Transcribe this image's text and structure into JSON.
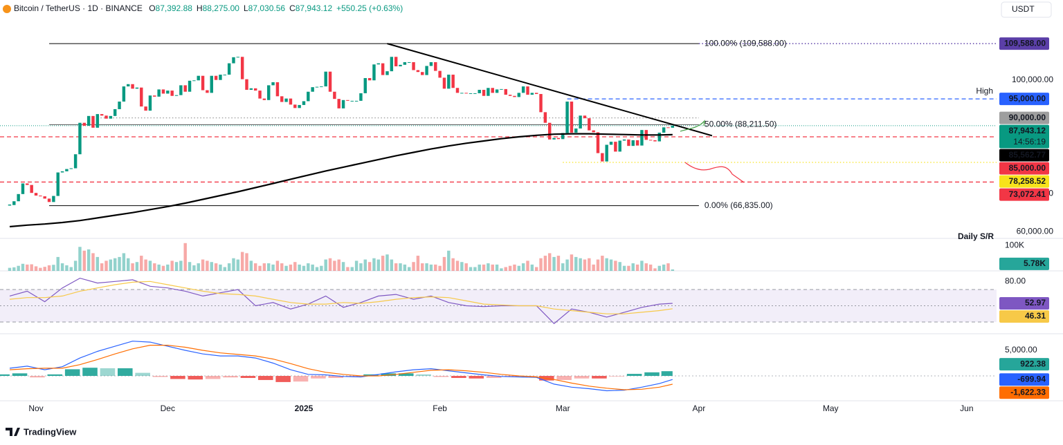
{
  "header": {
    "symbol": "Bitcoin / TetherUS · 1D · BINANCE",
    "ohlc": [
      {
        "key": "O",
        "value": "87,392.88"
      },
      {
        "key": "H",
        "value": "88,275.00"
      },
      {
        "key": "L",
        "value": "87,030.56"
      },
      {
        "key": "C",
        "value": "87,943.12"
      }
    ],
    "change": "+550.25 (+0.63%)",
    "currency": "USDT"
  },
  "footer": {
    "brand": "TradingView"
  },
  "chart_data": [
    {
      "type": "candlestick",
      "xlim": [
        -2.2,
        224.8
      ],
      "xticks": [
        {
          "value": 6,
          "label": "Nov"
        },
        {
          "value": 36,
          "label": "Dec"
        },
        {
          "value": 67,
          "label": "2025"
        },
        {
          "value": 98,
          "label": "Feb"
        },
        {
          "value": 126,
          "label": "Mar"
        },
        {
          "value": 157,
          "label": "Apr"
        },
        {
          "value": 187,
          "label": "May"
        },
        {
          "value": 218,
          "label": "Jun"
        }
      ],
      "ylim": [
        58200,
        121100
      ],
      "yticks": [
        {
          "value": 60000,
          "label": "60,000.00"
        },
        {
          "value": 70000,
          "label": "70,000.00"
        },
        {
          "value": 100000,
          "label": "100,000.00"
        }
      ],
      "up_color": "#089981",
      "down_color": "#f23645",
      "closes": [
        67000,
        68000,
        69900,
        72700,
        72300,
        70200,
        69500,
        69300,
        68700,
        67800,
        69400,
        75600,
        75900,
        76500,
        76700,
        80400,
        88700,
        87900,
        90500,
        87400,
        91000,
        90600,
        89800,
        90500,
        92300,
        94300,
        98300,
        98900,
        97700,
        98000,
        93000,
        91900,
        95900,
        95600,
        97500,
        96400,
        97200,
        95800,
        96000,
        98600,
        96900,
        99800,
        99900,
        101100,
        97300,
        96600,
        101100,
        100000,
        101400,
        101400,
        104400,
        106000,
        106100,
        100200,
        97400,
        97800,
        97200,
        95100,
        94700,
        98600,
        99400,
        95700,
        94200,
        95100,
        93500,
        92600,
        93400,
        94400,
        96900,
        98100,
        98200,
        98300,
        102200,
        96900,
        95000,
        92500,
        94700,
        94500,
        94500,
        94500,
        96500,
        100500,
        99900,
        104100,
        104400,
        101300,
        102300,
        106100,
        103600,
        104000,
        104700,
        104700,
        102600,
        102100,
        101300,
        103700,
        104700,
        102400,
        100600,
        97700,
        101400,
        97900,
        96600,
        96600,
        96500,
        96500,
        96500,
        97400,
        95800,
        97900,
        96600,
        97500,
        97600,
        96100,
        95800,
        95500,
        96600,
        98300,
        96100,
        96600,
        96300,
        91500,
        88700,
        84300,
        84700,
        84400,
        86000,
        94300,
        86100,
        87200,
        90600,
        89900,
        86700,
        86200,
        80700,
        78500,
        82900,
        83700,
        81100,
        84000,
        84300,
        82600,
        84100,
        82700,
        86800,
        84200,
        84100,
        83800,
        86100,
        87500,
        87400,
        87943.12
      ],
      "ma": {
        "color": "#000000",
        "x": [
          0,
          4,
          8,
          12,
          16,
          20,
          24,
          28,
          32,
          36,
          40,
          44,
          48,
          52,
          56,
          60,
          64,
          68,
          72,
          76,
          80,
          84,
          88,
          92,
          96,
          100,
          104,
          108,
          112,
          116,
          120,
          124,
          128,
          132,
          136,
          140,
          144,
          148,
          151
        ],
        "values": [
          61300,
          61700,
          62000,
          62400,
          62900,
          63600,
          64300,
          65000,
          65800,
          66600,
          67500,
          68500,
          69500,
          70500,
          71600,
          72700,
          73800,
          74900,
          76000,
          77000,
          78000,
          79000,
          80000,
          80900,
          81800,
          82600,
          83300,
          83900,
          84500,
          85000,
          85400,
          85700,
          85800,
          85800,
          85700,
          85600,
          85500,
          85500,
          85562.77
        ],
        "last_label": "85,562.77"
      },
      "trendline": {
        "x": [
          86,
          160
        ],
        "y": [
          109588,
          85300
        ],
        "color": "#000000"
      },
      "fib": [
        {
          "value": 109588,
          "label": "100.00% (109,588.00)"
        },
        {
          "value": 88211.5,
          "label": "50.00% (88,211.50)"
        },
        {
          "value": 66835,
          "label": "0.00% (66,835.00)"
        }
      ],
      "levels": [
        {
          "value": 109588,
          "label": "109,588.00",
          "color": "#5b3fa8",
          "style": "dotted"
        },
        {
          "value": 95000,
          "label": "95,000.00",
          "color": "#2962ff",
          "style": "dashed"
        },
        {
          "value": 90000,
          "label": "90,000.00",
          "color": "#9e9e9e",
          "style": "dotted"
        },
        {
          "value": 85000,
          "label": "85,000.00",
          "color": "#f23645",
          "style": "dashed"
        },
        {
          "value": 78258.52,
          "label": "78,258.52",
          "color": "#f7e31b",
          "style": "dotted"
        },
        {
          "value": 73072.41,
          "label": "73,072.41",
          "color": "#f23645",
          "style": "dashed"
        }
      ],
      "last": {
        "value": 87943.12,
        "label": "87,943.12",
        "countdown": "14:56:19",
        "color": "#089981"
      },
      "notes": [
        {
          "text": "High",
          "color": "#2962ff"
        },
        {
          "text": "Daily S/R",
          "color": "#ff9800"
        }
      ]
    },
    {
      "type": "volume",
      "ylim": [
        0,
        128600
      ],
      "yticks": [
        {
          "value": 100000,
          "label": "100K"
        }
      ],
      "up_color": "#26a69a80",
      "down_color": "#ef535080",
      "values": [
        12000,
        14000,
        20000,
        28000,
        25000,
        26000,
        18000,
        12000,
        16000,
        22000,
        24000,
        55000,
        30000,
        22000,
        15000,
        40000,
        95000,
        80000,
        85000,
        70000,
        55000,
        30000,
        40000,
        45000,
        50000,
        55000,
        70000,
        50000,
        30000,
        35000,
        60000,
        45000,
        40000,
        30000,
        25000,
        20000,
        25000,
        40000,
        35000,
        40000,
        110000,
        35000,
        22000,
        30000,
        45000,
        40000,
        35000,
        30000,
        25000,
        15000,
        30000,
        50000,
        45000,
        75000,
        70000,
        40000,
        30000,
        20000,
        30000,
        30000,
        25000,
        40000,
        30000,
        20000,
        25000,
        35000,
        25000,
        20000,
        30000,
        25000,
        15000,
        20000,
        45000,
        50000,
        40000,
        45000,
        35000,
        15000,
        15000,
        40000,
        30000,
        45000,
        35000,
        50000,
        45000,
        60000,
        65000,
        45000,
        30000,
        30000,
        25000,
        15000,
        35000,
        60000,
        30000,
        30000,
        25000,
        25000,
        20000,
        55000,
        80000,
        50000,
        40000,
        35000,
        30000,
        15000,
        15000,
        25000,
        25000,
        30000,
        25000,
        25000,
        10000,
        15000,
        20000,
        25000,
        20000,
        30000,
        40000,
        25000,
        15000,
        50000,
        60000,
        70000,
        55000,
        60000,
        30000,
        45000,
        65000,
        55000,
        50000,
        45000,
        50000,
        25000,
        45000,
        60000,
        50000,
        45000,
        40000,
        35000,
        20000,
        20000,
        30000,
        25000,
        40000,
        30000,
        25000,
        10000,
        20000,
        25000,
        30000,
        5780
      ],
      "last_label": "5.78K",
      "badge_color": "#26a69a"
    },
    {
      "type": "rsi",
      "ylim": [
        15.5,
        93
      ],
      "yticks": [
        {
          "value": 80,
          "label": "80.00"
        }
      ],
      "bands": [
        70,
        50,
        30
      ],
      "band_color": "#7e57c2",
      "x": [
        0,
        4,
        8,
        12,
        16,
        20,
        24,
        28,
        32,
        36,
        40,
        44,
        48,
        52,
        56,
        60,
        64,
        68,
        72,
        76,
        80,
        84,
        88,
        92,
        96,
        100,
        104,
        108,
        112,
        116,
        120,
        124,
        128,
        132,
        136,
        140,
        144,
        148,
        151
      ],
      "series": [
        {
          "color": "#7e57c2",
          "values": [
            62,
            68,
            55,
            72,
            84,
            78,
            80,
            82,
            74,
            72,
            68,
            62,
            66,
            70,
            50,
            54,
            46,
            52,
            62,
            48,
            54,
            62,
            64,
            58,
            62,
            54,
            50,
            49,
            50,
            50,
            50,
            28,
            46,
            42,
            36,
            42,
            48,
            52,
            52.97
          ],
          "last_label": "52.97"
        },
        {
          "color": "#f7c948",
          "values": [
            58,
            60,
            60,
            62,
            68,
            72,
            76,
            79,
            80,
            76,
            72,
            68,
            65,
            64,
            62,
            58,
            54,
            52,
            52,
            54,
            53,
            55,
            58,
            60,
            61,
            60,
            56,
            52,
            51,
            50,
            50,
            46,
            44,
            42,
            40,
            40,
            42,
            44,
            46.31
          ],
          "last_label": "46.31"
        }
      ]
    },
    {
      "type": "macd",
      "ylim": [
        -4860,
        8240
      ],
      "yticks": [
        {
          "value": 5000,
          "label": "5,000.00"
        }
      ],
      "x": [
        0,
        4,
        8,
        12,
        16,
        20,
        24,
        28,
        32,
        36,
        40,
        44,
        48,
        52,
        56,
        60,
        64,
        68,
        72,
        76,
        80,
        84,
        88,
        92,
        96,
        100,
        104,
        108,
        112,
        116,
        120,
        124,
        128,
        132,
        136,
        140,
        144,
        148,
        151
      ],
      "histogram": {
        "values": [
          300,
          500,
          -300,
          300,
          1300,
          1600,
          1500,
          1500,
          600,
          -200,
          -600,
          -700,
          -600,
          -300,
          -400,
          -800,
          -1200,
          -1100,
          -500,
          -400,
          -200,
          300,
          500,
          500,
          300,
          -200,
          -400,
          -500,
          -400,
          -200,
          -100,
          -900,
          -800,
          -500,
          -500,
          -100,
          400,
          700,
          922.38
        ],
        "last_label": "922.38",
        "up_color": "#26a69a",
        "down_color": "#ef5350"
      },
      "series": [
        {
          "color": "#2962ff",
          "values": [
            1500,
            1900,
            1200,
            1800,
            3500,
            4800,
            5800,
            6800,
            6600,
            5800,
            5000,
            4300,
            3900,
            3900,
            3500,
            2500,
            1200,
            300,
            200,
            -100,
            -200,
            300,
            800,
            1200,
            1400,
            1000,
            600,
            200,
            -100,
            -200,
            -300,
            -1600,
            -2200,
            -2500,
            -2900,
            -2800,
            -2200,
            -1500,
            -699.94
          ],
          "last_label": "-699.94"
        },
        {
          "color": "#ff6d00",
          "values": [
            1200,
            1400,
            1500,
            1500,
            2200,
            3200,
            4300,
            5300,
            6000,
            6000,
            5600,
            5000,
            4500,
            4200,
            3900,
            3300,
            2400,
            1400,
            700,
            300,
            0,
            0,
            300,
            700,
            1100,
            1200,
            1000,
            700,
            300,
            0,
            -200,
            -700,
            -1400,
            -2000,
            -2400,
            -2700,
            -2600,
            -2200,
            -1622.33
          ],
          "last_label": "-1,622.33"
        }
      ]
    }
  ]
}
